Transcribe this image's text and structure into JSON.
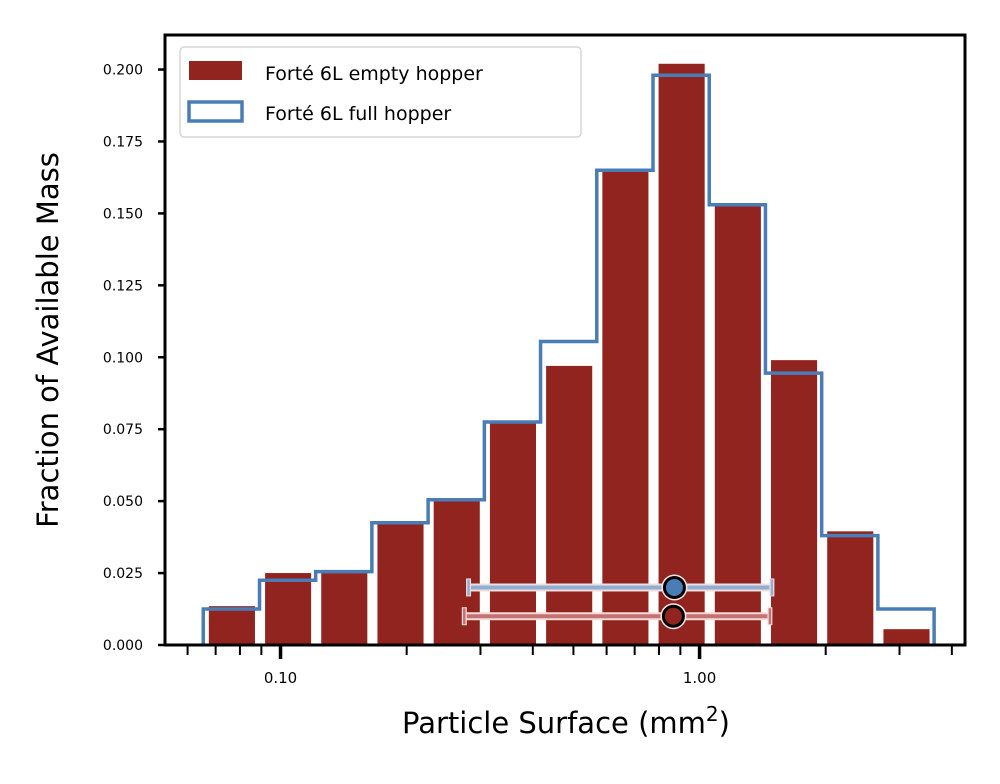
{
  "chart_data": {
    "type": "bar",
    "title": "",
    "xlabel": "Particle Surface (mm",
    "xlabel_sup": "2",
    "xlabel_close": ")",
    "ylabel": "Fraction of Available Mass",
    "xscale": "log",
    "xlim": [
      0.053,
      4.3
    ],
    "ylim": [
      0,
      0.212
    ],
    "yticks": [
      0,
      0.025,
      0.05,
      0.075,
      0.1,
      0.125,
      0.15,
      0.175,
      0.2
    ],
    "ytick_labels": [
      "0.000",
      "0.025",
      "0.050",
      "0.075",
      "0.100",
      "0.125",
      "0.150",
      "0.175",
      "0.200"
    ],
    "xticks_major": [
      0.1,
      1.0
    ],
    "xtick_labels": [
      "0.10",
      "1.00"
    ],
    "xticks_minor": [
      0.06,
      0.07,
      0.08,
      0.09,
      0.2,
      0.3,
      0.4,
      0.5,
      0.6,
      0.7,
      0.8,
      0.9,
      2,
      3,
      4
    ],
    "bin_edges": [
      0.0654,
      0.0891,
      0.1213,
      0.1652,
      0.225,
      0.3065,
      0.4174,
      0.5685,
      0.7743,
      1.0546,
      1.4363,
      1.9562,
      2.6643,
      3.6287
    ],
    "grid": false,
    "legend_position": "top-left",
    "series": [
      {
        "name": "Forté 6L empty hopper",
        "style": "bar",
        "color": "#922420",
        "values": [
          0.0135,
          0.025,
          0.025,
          0.042,
          0.05,
          0.078,
          0.097,
          0.165,
          0.202,
          0.153,
          0.099,
          0.0395,
          0.0055
        ],
        "summary": {
          "center": 0.866,
          "low": 0.2745,
          "high": 1.472,
          "y": 0.01
        }
      },
      {
        "name": "Forté 6L full hopper",
        "style": "step",
        "color": "#4a7db5",
        "values": [
          0.0125,
          0.0225,
          0.0255,
          0.0425,
          0.0505,
          0.0775,
          0.1055,
          0.165,
          0.198,
          0.153,
          0.0945,
          0.038,
          0.0125
        ],
        "summary": {
          "center": 0.871,
          "low": 0.281,
          "high": 1.488,
          "y": 0.02
        }
      }
    ]
  }
}
